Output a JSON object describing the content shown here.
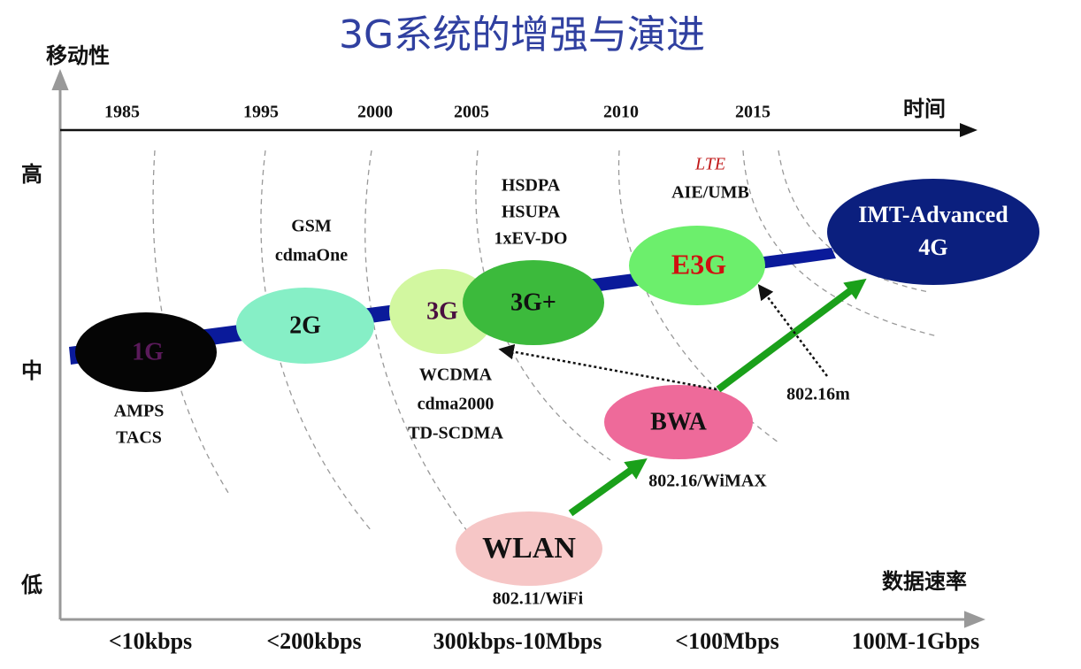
{
  "title": "3G系统的增强与演进",
  "axes": {
    "y_label": "移动性",
    "x_top_label": "时间",
    "x_bottom_label": "数据速率",
    "y_levels": [
      "高",
      "中",
      "低"
    ]
  },
  "years": [
    "1985",
    "1995",
    "2000",
    "2005",
    "2010",
    "2015"
  ],
  "rates": [
    "<10kbps",
    "<200kbps",
    "300kbps-10Mbps",
    "<100Mbps",
    "100M-1Gbps"
  ],
  "nodes": [
    {
      "label": "1G",
      "notes": [
        "AMPS",
        "TACS"
      ]
    },
    {
      "label": "2G",
      "notes": [
        "GSM",
        "cdmaOne"
      ]
    },
    {
      "label": "3G",
      "notes": [
        "WCDMA",
        "cdma2000",
        "TD-SCDMA"
      ]
    },
    {
      "label": "3G+",
      "notes": [
        "HSDPA",
        "HSUPA",
        "1xEV-DO"
      ]
    },
    {
      "label": "E3G",
      "notes": [
        "LTE",
        "AIE/UMB"
      ]
    },
    {
      "label": "IMT-Advanced",
      "sublabel": "4G"
    },
    {
      "label": "BWA",
      "notes": [
        "802.16/WiMAX",
        "802.16m"
      ]
    },
    {
      "label": "WLAN",
      "notes": [
        "802.11/WiFi"
      ]
    }
  ]
}
